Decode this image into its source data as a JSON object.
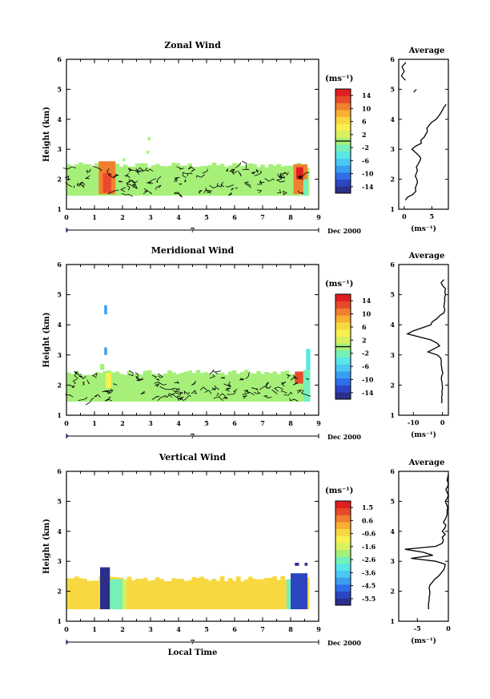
{
  "figure": {
    "date_label": "Dec 2000",
    "bottom_xlabel": "Local Time",
    "colorbar_unit": "(ms⁻¹)",
    "profile_title": "Average",
    "profile_xlabel": "(ms⁻¹)",
    "day_label": "7"
  },
  "colors": {
    "wind_scale": [
      "#2b2f8a",
      "#2c46c2",
      "#2f6ee6",
      "#3a9ef0",
      "#4cc6f2",
      "#58e6e6",
      "#74f0b8",
      "#a6f07a",
      "#d8f060",
      "#f8f050",
      "#f8d840",
      "#f8b030",
      "#f08030",
      "#e84a2a",
      "#e02020"
    ],
    "vert_scale": [
      "#2b2f8a",
      "#2c46c2",
      "#2f6ee6",
      "#3a9ef0",
      "#4cc6f2",
      "#58e6e6",
      "#74f0b8",
      "#a6f07a",
      "#d8f060",
      "#f8f050",
      "#f8d840",
      "#f8b030",
      "#f08030",
      "#e84a2a",
      "#e02020"
    ]
  },
  "chart_data": [
    {
      "type": "heatmap",
      "title": "Zonal Wind",
      "ylabel": "Height (km)",
      "xlabel": "",
      "xlim": [
        0,
        9
      ],
      "ylim": [
        1,
        6
      ],
      "x_ticks": [
        "0",
        "1",
        "2",
        "3",
        "4",
        "5",
        "6",
        "7",
        "8",
        "9"
      ],
      "y_ticks": [
        "1",
        "2",
        "3",
        "4",
        "5",
        "6"
      ],
      "colorbar_ticks": [
        "14",
        "10",
        "6",
        "2",
        "-2",
        "-6",
        "-10",
        "-14"
      ],
      "colorbar_range": [
        -16,
        16
      ],
      "background_value": 1,
      "data_top_km": 2.5,
      "data_bottom_km": 1.45,
      "patches": [
        {
          "x": [
            1.15,
            1.75
          ],
          "y": [
            1.5,
            2.6
          ],
          "value": 10
        },
        {
          "x": [
            1.3,
            1.6
          ],
          "y": [
            1.55,
            2.2
          ],
          "value": 13
        },
        {
          "x": [
            8.1,
            8.6
          ],
          "y": [
            1.5,
            2.5
          ],
          "value": 10
        },
        {
          "x": [
            8.2,
            8.45
          ],
          "y": [
            2.0,
            2.4
          ],
          "value": 15
        },
        {
          "x": [
            8.45,
            8.6
          ],
          "y": [
            1.45,
            2.0
          ],
          "value": -3
        }
      ],
      "isolated": [
        {
          "x": [
            2.9,
            3.0
          ],
          "y": [
            3.3,
            3.4
          ],
          "value": 1
        },
        {
          "x": [
            2.85,
            2.95
          ],
          "y": [
            2.85,
            2.95
          ],
          "value": 1
        },
        {
          "x": [
            2.0,
            2.1
          ],
          "y": [
            2.6,
            2.7
          ],
          "value": 1
        }
      ],
      "profile": {
        "xlim": [
          -1,
          8
        ],
        "x_ticks": [
          "0",
          "5"
        ],
        "x_tick_values": [
          0,
          5
        ],
        "y": [
          1.3,
          1.4,
          1.5,
          1.6,
          1.7,
          1.8,
          1.9,
          2.0,
          2.1,
          2.2,
          2.3,
          2.4,
          2.5,
          2.6,
          2.7,
          2.8,
          2.9,
          3.0,
          3.1,
          3.2,
          3.3,
          3.4,
          3.5,
          3.6,
          3.7,
          3.8,
          3.9,
          4.0,
          4.1,
          4.2,
          4.3,
          4.4,
          4.5
        ],
        "x": [
          0.2,
          0.6,
          1.6,
          2.1,
          2.0,
          2.2,
          2.4,
          2.3,
          2.0,
          2.2,
          2.4,
          2.2,
          2.5,
          2.8,
          3.0,
          2.6,
          2.0,
          1.4,
          2.0,
          3.1,
          3.0,
          3.6,
          3.9,
          4.2,
          4.1,
          4.5,
          5.0,
          5.8,
          6.2,
          6.6,
          6.9,
          7.2,
          7.6
        ],
        "upper": {
          "y": [
            5.3,
            5.45,
            5.6,
            5.75,
            5.9
          ],
          "x": [
            0.2,
            -0.5,
            0.0,
            -0.4,
            0.3
          ]
        },
        "fragment": {
          "y": [
            4.9,
            5.0
          ],
          "x": [
            1.7,
            2.2
          ]
        }
      }
    },
    {
      "type": "heatmap",
      "title": "Meridional Wind",
      "ylabel": "Height (km)",
      "xlabel": "",
      "xlim": [
        0,
        9
      ],
      "ylim": [
        1,
        6
      ],
      "x_ticks": [
        "0",
        "1",
        "2",
        "3",
        "4",
        "5",
        "6",
        "7",
        "8",
        "9"
      ],
      "y_ticks": [
        "1",
        "2",
        "3",
        "4",
        "5",
        "6"
      ],
      "colorbar_ticks": [
        "14",
        "10",
        "6",
        "2",
        "-2",
        "-6",
        "-10",
        "-14"
      ],
      "colorbar_range": [
        -16,
        16
      ],
      "background_value": 1,
      "data_top_km": 2.45,
      "data_bottom_km": 1.45,
      "patches": [
        {
          "x": [
            1.4,
            1.6
          ],
          "y": [
            1.9,
            2.4
          ],
          "value": 5
        },
        {
          "x": [
            8.15,
            8.45
          ],
          "y": [
            2.05,
            2.45
          ],
          "value": 13
        },
        {
          "x": [
            8.45,
            8.7
          ],
          "y": [
            1.45,
            2.5
          ],
          "value": -3
        },
        {
          "x": [
            8.55,
            8.7
          ],
          "y": [
            2.5,
            3.2
          ],
          "value": -4
        }
      ],
      "isolated": [
        {
          "x": [
            1.35,
            1.45
          ],
          "y": [
            4.35,
            4.65
          ],
          "value": -9
        },
        {
          "x": [
            1.35,
            1.45
          ],
          "y": [
            3.0,
            3.25
          ],
          "value": -9
        },
        {
          "x": [
            1.2,
            1.35
          ],
          "y": [
            2.5,
            2.7
          ],
          "value": 1
        }
      ],
      "profile": {
        "xlim": [
          -15,
          2
        ],
        "x_ticks": [
          "-10",
          "0"
        ],
        "x_tick_values": [
          -10,
          0
        ],
        "y": [
          1.4,
          1.5,
          1.6,
          1.7,
          1.8,
          1.9,
          2.0,
          2.1,
          2.2,
          2.3,
          2.4,
          2.5,
          2.6,
          2.7,
          2.8,
          2.9,
          3.0,
          3.1,
          3.2,
          3.3,
          3.4,
          3.5,
          3.6,
          3.7,
          3.8,
          3.9,
          4.0,
          4.1,
          4.2,
          4.3,
          4.4,
          4.5,
          4.6,
          4.7,
          4.8,
          4.9,
          5.0,
          5.1,
          5.2,
          5.3,
          5.4,
          5.5
        ],
        "x": [
          -0.3,
          -0.2,
          -0.3,
          -0.1,
          -0.2,
          0.0,
          -0.1,
          -0.2,
          -0.4,
          -0.3,
          0.1,
          -0.2,
          -0.3,
          -0.5,
          -0.4,
          -0.6,
          -1.8,
          -5.0,
          -3.0,
          -1.0,
          -2.0,
          -4.0,
          -8.0,
          -12.0,
          -10.0,
          -7.0,
          -4.0,
          -3.5,
          -2.0,
          -1.0,
          0.5,
          0.8,
          0.5,
          0.6,
          0.8,
          0.7,
          1.0,
          0.8,
          1.0,
          0.0,
          -0.5,
          0.5
        ]
      }
    },
    {
      "type": "heatmap",
      "title": "Vertical Wind",
      "ylabel": "Height (km)",
      "xlabel": "Local Time",
      "xlim": [
        0,
        9
      ],
      "ylim": [
        1,
        6
      ],
      "x_ticks": [
        "0",
        "1",
        "2",
        "3",
        "4",
        "5",
        "6",
        "7",
        "8",
        "9"
      ],
      "y_ticks": [
        "1",
        "2",
        "3",
        "4",
        "5",
        "6"
      ],
      "colorbar_ticks": [
        "1.5",
        "0.6",
        "-0.6",
        "-1.6",
        "-2.6",
        "-3.6",
        "-4.5",
        "-5.5"
      ],
      "colorbar_range": [
        -6.0,
        2.0
      ],
      "background_value": -0.3,
      "data_top_km": 2.45,
      "data_bottom_km": 1.4,
      "patches": [
        {
          "x": [
            1.2,
            1.55
          ],
          "y": [
            1.4,
            2.8
          ],
          "value": -5.8
        },
        {
          "x": [
            1.55,
            2.0
          ],
          "y": [
            1.4,
            2.4
          ],
          "value": -2.6
        },
        {
          "x": [
            2.0,
            2.15
          ],
          "y": [
            1.4,
            2.4
          ],
          "value": -1.6
        },
        {
          "x": [
            8.0,
            8.6
          ],
          "y": [
            1.4,
            2.6
          ],
          "value": -5.2
        },
        {
          "x": [
            7.85,
            8.0
          ],
          "y": [
            1.4,
            2.4
          ],
          "value": -2.6
        }
      ],
      "isolated": [
        {
          "x": [
            8.15,
            8.3
          ],
          "y": [
            2.85,
            2.95
          ],
          "value": -5.5
        },
        {
          "x": [
            8.5,
            8.6
          ],
          "y": [
            2.85,
            2.95
          ],
          "value": -5.5
        }
      ],
      "profile": {
        "xlim": [
          -8,
          0
        ],
        "x_ticks": [
          "-5",
          "0"
        ],
        "x_tick_values": [
          -5,
          0
        ],
        "y": [
          1.4,
          1.5,
          1.6,
          1.7,
          1.8,
          1.9,
          2.0,
          2.1,
          2.2,
          2.3,
          2.4,
          2.5,
          2.6,
          2.7,
          2.8,
          2.9,
          3.0,
          3.1,
          3.2,
          3.3,
          3.4,
          3.5,
          3.6,
          3.7,
          3.8,
          3.9,
          4.0,
          4.1,
          4.2,
          4.3,
          4.4,
          4.5,
          4.6,
          4.7,
          4.8,
          4.9,
          5.0,
          5.1,
          5.2,
          5.3,
          5.4,
          5.5,
          5.6,
          5.7,
          5.8,
          5.9
        ],
        "x": [
          -3.2,
          -3.2,
          -3.2,
          -3.1,
          -3.1,
          -3.0,
          -3.0,
          -3.1,
          -3.0,
          -2.6,
          -2.2,
          -1.6,
          -1.2,
          -0.8,
          -0.6,
          -0.5,
          -2.0,
          -6.0,
          -2.5,
          -4.0,
          -7.0,
          -2.0,
          -1.0,
          -0.8,
          -1.0,
          -0.5,
          -1.0,
          -0.6,
          -0.4,
          -0.8,
          -0.5,
          -0.3,
          -0.2,
          -0.2,
          -0.1,
          -0.3,
          -0.5,
          -0.2,
          0.0,
          -0.2,
          -0.4,
          -0.1,
          0.0,
          -0.2,
          -0.1,
          0.0
        ]
      }
    }
  ]
}
